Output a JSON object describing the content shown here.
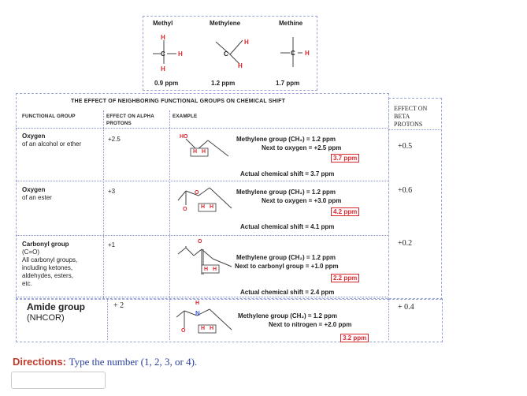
{
  "top_panel": {
    "methyl_label": "Methyl",
    "methylene_label": "Methylene",
    "methine_label": "Methine",
    "methyl_shift": "0.9 ppm",
    "methylene_shift": "1.2 ppm",
    "methine_shift": "1.7 ppm",
    "atom_h": "H",
    "atom_c": "C"
  },
  "table": {
    "title": "THE EFFECT OF NEIGHBORING FUNCTIONAL GROUPS ON CHEMICAL SHIFT",
    "col_group": "FUNCTIONAL GROUP",
    "col_alpha_1": "EFFECT ON ALPHA",
    "col_alpha_2": "PROTONS",
    "col_example": "EXAMPLE",
    "col_beta_1": "EFFECT ON",
    "col_beta_2": "BETA",
    "col_beta_3": "PROTONS",
    "ho_label": "HO",
    "o_label": "O",
    "n_label": "N",
    "rows": [
      {
        "name": "Oxygen",
        "desc": "of an alcohol or ether",
        "alpha": "+2.5",
        "line1": "Methylene group (CH₂) =  1.2 ppm",
        "line2": "Next to oxygen = +2.5 ppm",
        "result": "3.7 ppm",
        "actual": "Actual chemical shift =  3.7 ppm",
        "beta": "+0.5"
      },
      {
        "name": "Oxygen",
        "desc": "of an ester",
        "alpha": "+3",
        "line1": "Methylene group (CH₂) =  1.2 ppm",
        "line2": "Next to oxygen = +3.0 ppm",
        "result": "4.2 ppm",
        "actual": "Actual chemical shift =  4.1 ppm",
        "beta": "+0.6"
      },
      {
        "name": "Carbonyl group",
        "desc": "(C=O)",
        "desc2": "All carbonyl groups,",
        "desc3": "including ketones,",
        "desc4": "aldehydes, esters,",
        "desc5": "etc.",
        "alpha": "+1",
        "line1": "Methylene group (CH₂) =  1.2 ppm",
        "line2": "Next to carbonyl group = +1.0 ppm",
        "result": "2.2 ppm",
        "actual": "Actual chemical shift =  2.4 ppm",
        "beta": "+0.2"
      },
      {
        "name": "Amide group",
        "desc": "(NHCOR)",
        "alpha": "+ 2",
        "line1": "Methylene group (CH₂) =  1.2 ppm",
        "line2": "Next to nitrogen = +2.0 ppm",
        "result": "3.2 ppm",
        "beta": "+ 0.4"
      }
    ]
  },
  "directions": {
    "label": "Directions:",
    "text": "Type the number (1, 2, 3, or 4)."
  },
  "answer": {
    "value": ""
  }
}
